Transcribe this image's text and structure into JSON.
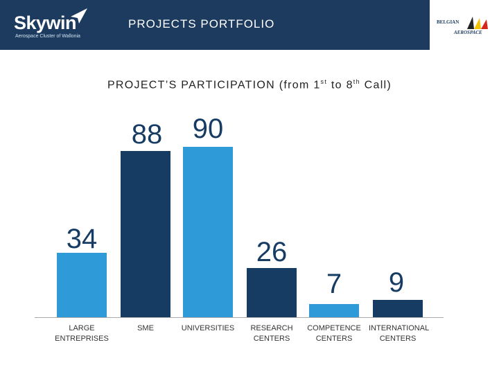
{
  "header": {
    "logo": "Skywin",
    "logo_tagline": "Aerospace Cluster of Wallonia",
    "heading": "PROJECTS PORTFOLIO",
    "partner_line1": "BELGIAN",
    "partner_line2": "AEROSPACE"
  },
  "chart_data": {
    "type": "bar",
    "title_parts": [
      "PROJECT’S PARTICIPATION (from 1",
      "st",
      " to 8",
      "th",
      " Call)"
    ],
    "categories": [
      "LARGE ENTREPRISES",
      "SME",
      "UNIVERSITIES",
      "RESEARCH CENTERS",
      "COMPETENCE CENTERS",
      "INTERNATIONAL CENTERS"
    ],
    "values": [
      34,
      88,
      90,
      26,
      7,
      9
    ],
    "colors": [
      "#2e9ad8",
      "#173c63",
      "#2e9ad8",
      "#173c63",
      "#2e9ad8",
      "#173c63"
    ],
    "ylim": [
      0,
      100
    ]
  }
}
